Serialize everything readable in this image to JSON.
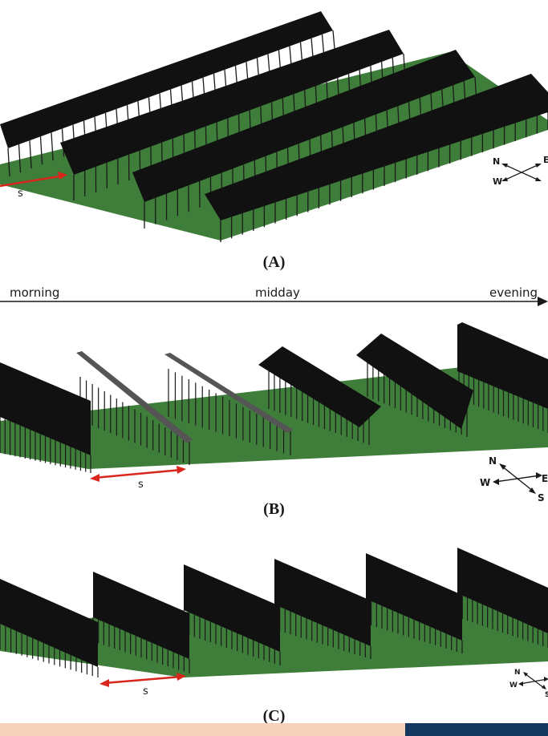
{
  "panels": {
    "a": {
      "label": "(A)",
      "spacing_label": "s"
    },
    "b": {
      "label": "(B)",
      "spacing_label": "s"
    },
    "c": {
      "label": "(C)",
      "spacing_label": "s"
    }
  },
  "timeline": {
    "morning": "morning",
    "midday": "midday",
    "evening": "evening"
  },
  "compass": {
    "n": "N",
    "e": "E",
    "s": "S",
    "w": "W"
  },
  "colors": {
    "ground": "#3f7e3a",
    "panel": "#111111",
    "panel_midday": "#555555",
    "spacing_arrow": "#d8261c",
    "post": "#1a1a1a"
  }
}
